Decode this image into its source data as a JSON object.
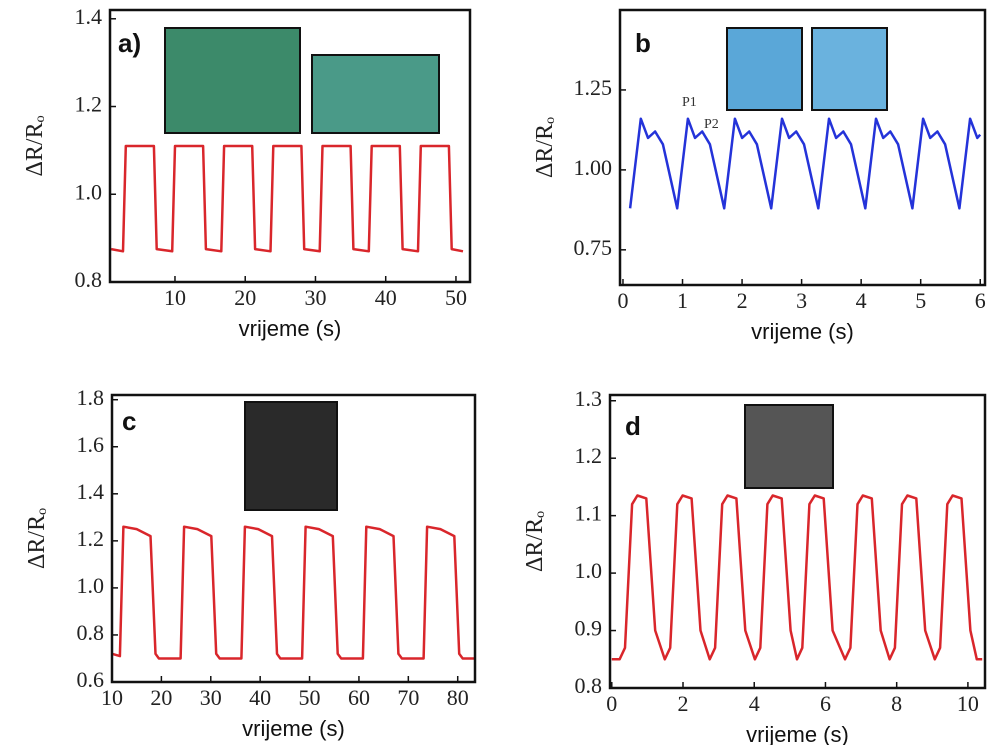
{
  "chart_data": [
    {
      "type": "line",
      "label": "a)",
      "ylabel": "ΔR/Rₒ",
      "xlabel": "vrijeme (s)",
      "color": "#d9262b",
      "xlim": [
        0.75,
        52
      ],
      "ylim": [
        0.8,
        1.42
      ],
      "xticks": [
        10,
        20,
        30,
        40,
        50
      ],
      "yticks": [
        0.8,
        {
          "value": 1.0,
          "label": "1.0"
        },
        1.2,
        1.4
      ],
      "x": [
        0.9,
        2.6,
        3.0,
        7.0,
        7.4,
        9.6,
        10.0,
        14.0,
        14.4,
        16.6,
        17.0,
        21.0,
        21.4,
        23.6,
        24.0,
        28.0,
        28.4,
        30.6,
        31.0,
        35.0,
        35.4,
        37.6,
        38.0,
        42.0,
        42.4,
        44.6,
        45.0,
        49.0,
        49.4,
        51.0
      ],
      "values": [
        0.875,
        0.87,
        1.11,
        1.11,
        0.875,
        0.87,
        1.11,
        1.11,
        0.875,
        0.87,
        1.11,
        1.11,
        0.875,
        0.87,
        1.11,
        1.11,
        0.875,
        0.87,
        1.11,
        1.11,
        0.875,
        0.87,
        1.11,
        1.11,
        0.875,
        0.87,
        1.11,
        1.11,
        0.875,
        0.87
      ]
    },
    {
      "type": "line",
      "label": "b",
      "ylabel": "ΔR/Rₒ",
      "xlabel": "vrijeme (s)",
      "color": "#2433d9",
      "annotations": [
        "P1",
        "P2"
      ],
      "xlim": [
        -0.05,
        6.08
      ],
      "ylim": [
        0.64,
        1.5
      ],
      "xticks": [
        0,
        1,
        2,
        3,
        4,
        5,
        6
      ],
      "yticks": [
        0.75,
        {
          "value": 1.0,
          "label": "1.00"
        },
        1.25
      ],
      "x": [
        0.12,
        0.3,
        0.42,
        0.54,
        0.67,
        0.91,
        1.09,
        1.21,
        1.33,
        1.46,
        1.7,
        1.88,
        2.0,
        2.12,
        2.25,
        2.49,
        2.67,
        2.79,
        2.91,
        3.04,
        3.28,
        3.46,
        3.58,
        3.7,
        3.83,
        4.07,
        4.25,
        4.37,
        4.49,
        4.62,
        4.86,
        5.04,
        5.16,
        5.28,
        5.41,
        5.65,
        5.83,
        5.95,
        6.0
      ],
      "values": [
        0.88,
        1.16,
        1.1,
        1.12,
        1.08,
        0.88,
        1.16,
        1.1,
        1.12,
        1.08,
        0.88,
        1.16,
        1.1,
        1.12,
        1.08,
        0.88,
        1.16,
        1.1,
        1.12,
        1.08,
        0.88,
        1.16,
        1.1,
        1.12,
        1.08,
        0.88,
        1.16,
        1.1,
        1.12,
        1.08,
        0.88,
        1.16,
        1.1,
        1.12,
        1.08,
        0.88,
        1.16,
        1.1,
        1.11
      ]
    },
    {
      "type": "line",
      "label": "c",
      "ylabel": "ΔR/Rₒ",
      "xlabel": "vrijeme (s)",
      "color": "#d9262b",
      "xlim": [
        10,
        83.5
      ],
      "ylim": [
        0.6,
        1.82
      ],
      "xticks": [
        10,
        20,
        30,
        40,
        50,
        60,
        70,
        80
      ],
      "yticks": [
        0.6,
        0.8,
        {
          "value": 1.0,
          "label": "1.0"
        },
        1.2,
        1.4,
        1.6,
        1.8
      ],
      "x": [
        10,
        11.6,
        12.3,
        15,
        17.8,
        18.8,
        19.5,
        23.9,
        24.6,
        27.3,
        30.1,
        31.1,
        31.8,
        36.2,
        36.9,
        39.6,
        42.4,
        43.4,
        44.1,
        48.5,
        49.2,
        51.9,
        54.7,
        55.7,
        56.4,
        60.8,
        61.5,
        64.2,
        67.0,
        68.0,
        68.7,
        73.1,
        73.8,
        76.5,
        79.3,
        80.3,
        81.0,
        83.3
      ],
      "values": [
        0.72,
        0.71,
        1.26,
        1.25,
        1.22,
        0.72,
        0.7,
        0.7,
        1.26,
        1.25,
        1.22,
        0.72,
        0.7,
        0.7,
        1.26,
        1.25,
        1.22,
        0.72,
        0.7,
        0.7,
        1.26,
        1.25,
        1.22,
        0.72,
        0.7,
        0.7,
        1.26,
        1.25,
        1.22,
        0.72,
        0.7,
        0.7,
        1.26,
        1.25,
        1.22,
        0.72,
        0.7,
        0.7
      ]
    },
    {
      "type": "line",
      "label": "d",
      "ylabel": "ΔR/Rₒ",
      "xlabel": "vrijeme (s)",
      "color": "#d9262b",
      "xlim": [
        -0.05,
        10.48
      ],
      "ylim": [
        0.8,
        1.31
      ],
      "xticks": [
        0,
        2,
        4,
        6,
        8,
        10
      ],
      "yticks": [
        0.8,
        0.9,
        {
          "value": 1.0,
          "label": "1.0"
        },
        1.1,
        1.2,
        1.3
      ],
      "x": [
        0.0,
        0.22,
        0.37,
        0.57,
        0.72,
        0.97,
        1.22,
        1.49,
        1.64,
        1.84,
        1.99,
        2.24,
        2.49,
        2.75,
        2.9,
        3.1,
        3.25,
        3.5,
        3.75,
        4.02,
        4.17,
        4.37,
        4.52,
        4.77,
        5.02,
        5.2,
        5.35,
        5.55,
        5.7,
        5.95,
        6.2,
        6.55,
        6.7,
        6.9,
        7.05,
        7.3,
        7.55,
        7.8,
        7.95,
        8.15,
        8.3,
        8.55,
        8.8,
        9.07,
        9.22,
        9.42,
        9.57,
        9.82,
        10.07,
        10.25,
        10.4
      ],
      "values": [
        0.85,
        0.85,
        0.87,
        1.12,
        1.135,
        1.13,
        0.9,
        0.85,
        0.87,
        1.12,
        1.135,
        1.13,
        0.9,
        0.85,
        0.87,
        1.12,
        1.135,
        1.13,
        0.9,
        0.85,
        0.87,
        1.12,
        1.135,
        1.13,
        0.9,
        0.85,
        0.87,
        1.12,
        1.135,
        1.13,
        0.9,
        0.85,
        0.87,
        1.12,
        1.135,
        1.13,
        0.9,
        0.85,
        0.87,
        1.12,
        1.135,
        1.13,
        0.9,
        0.85,
        0.87,
        1.12,
        1.135,
        1.13,
        0.9,
        0.85,
        0.85
      ]
    }
  ]
}
